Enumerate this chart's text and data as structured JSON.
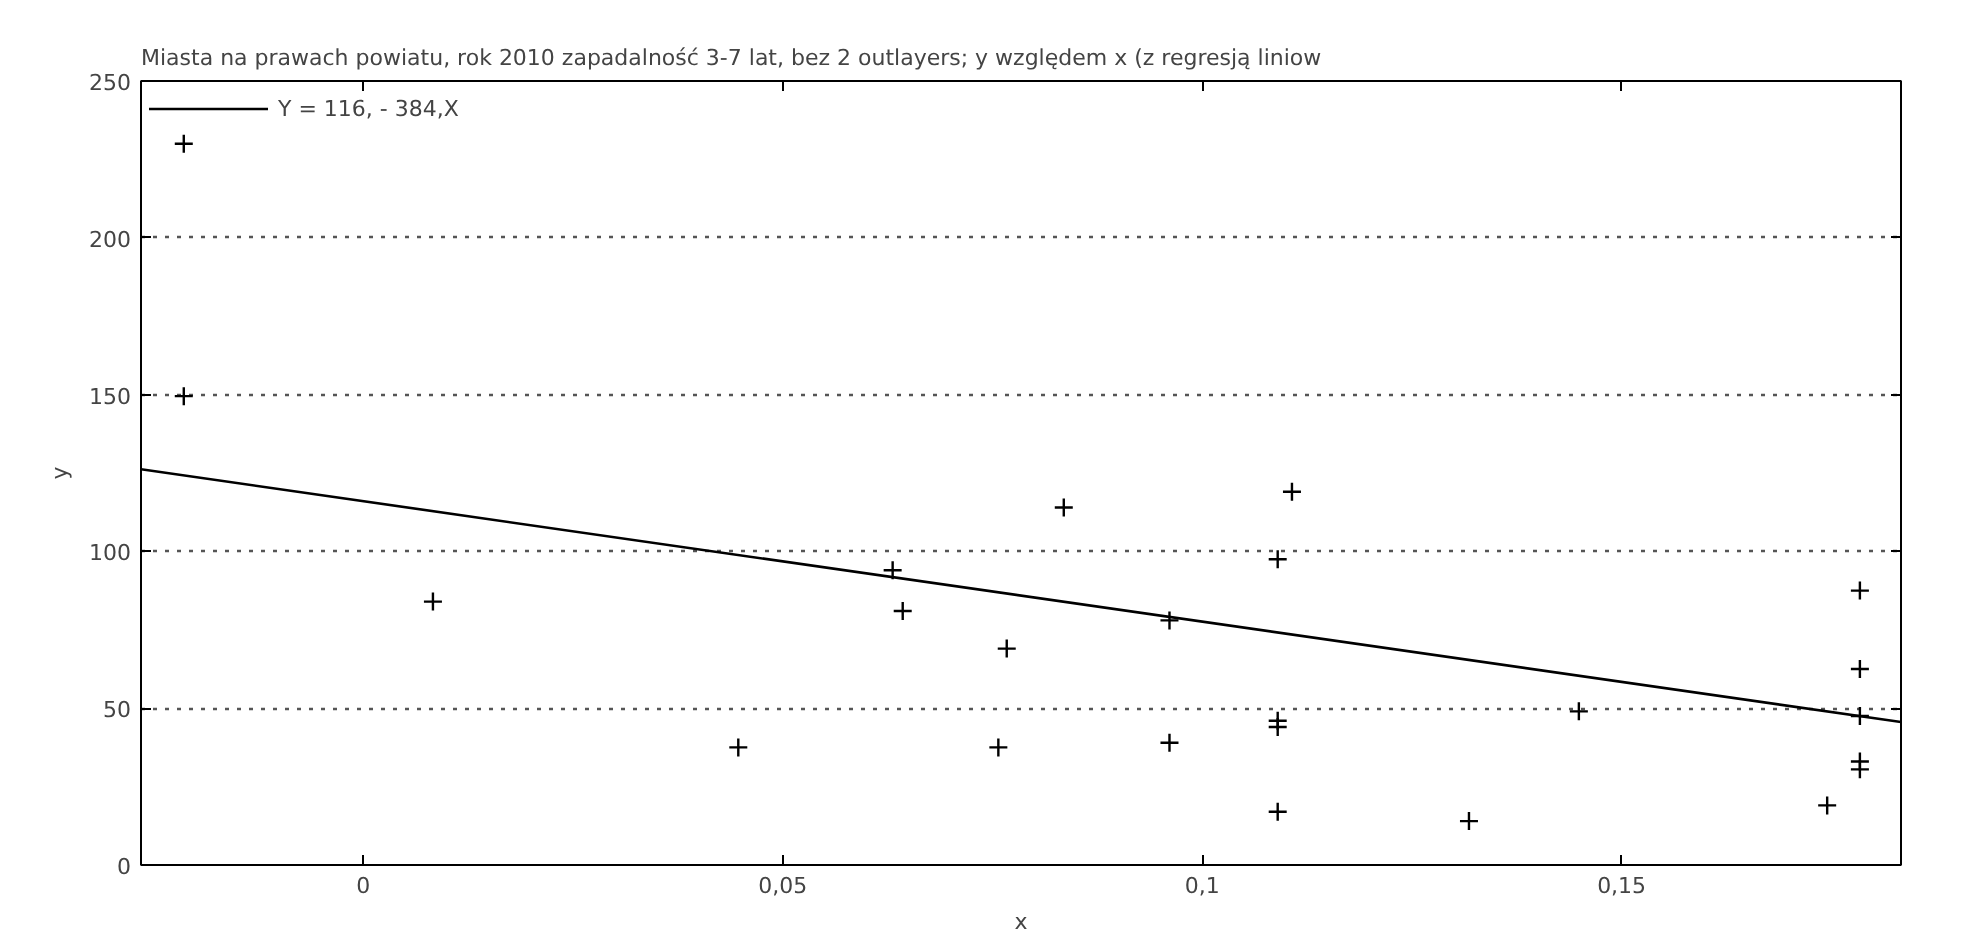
{
  "chart_data": {
    "type": "scatter",
    "title": "Miasta na prawach powiatu, rok 2010 zapadalność 3-7 lat, bez 2 outlayers; y względem x (z regresją liniow",
    "xlabel": "x",
    "ylabel": "y",
    "x": [
      -0.0214,
      -0.0214,
      0.0083,
      0.0447,
      0.0631,
      0.0643,
      0.0767,
      0.0757,
      0.0835,
      0.0961,
      0.0961,
      0.109,
      0.1107,
      0.109,
      0.109,
      0.109,
      0.1318,
      0.1449,
      0.1745,
      0.1784,
      0.1784,
      0.1784,
      0.1784,
      0.1784
    ],
    "series": [
      {
        "color": "#000000",
        "marker": "cross",
        "values": [
          230,
          149.5,
          84,
          37.5,
          94,
          81,
          69,
          37.5,
          114,
          78,
          39,
          97.5,
          119,
          46,
          44,
          17,
          14,
          49,
          19,
          87.5,
          62.5,
          47.5,
          33,
          30.5
        ]
      },
      {
        "type": "line",
        "name": "Y = 116, - 384,X",
        "color": "#000000",
        "line_style": "solid",
        "x": [
          -0.0265,
          0.1833
        ],
        "values": [
          126.2,
          45.6
        ]
      }
    ],
    "xlim": [
      -0.0265,
      0.1833
    ],
    "ylim": [
      0,
      250
    ],
    "xticks": [
      {
        "value": 0,
        "label": "0"
      },
      {
        "value": 0.05,
        "label": "0,05"
      },
      {
        "value": 0.1,
        "label": "0,1"
      },
      {
        "value": 0.15,
        "label": "0,15"
      }
    ],
    "yticks": [
      0,
      50,
      100,
      150,
      200,
      250
    ],
    "grid": "y",
    "legend": "top left"
  }
}
